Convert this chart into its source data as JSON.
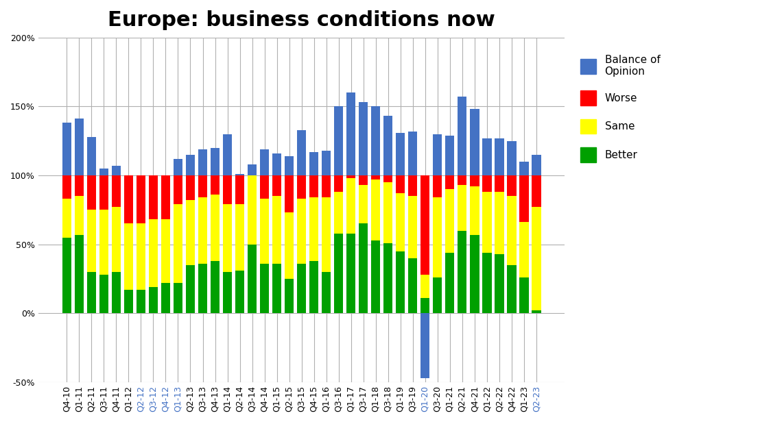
{
  "title": "Europe: business conditions now",
  "categories": [
    "Q4-10",
    "Q1-11",
    "Q2-11",
    "Q3-11",
    "Q4-11",
    "Q1-12",
    "Q2-12",
    "Q3-12",
    "Q4-12",
    "Q1-13",
    "Q2-13",
    "Q3-13",
    "Q4-13",
    "Q1-14",
    "Q2-14",
    "Q3-14",
    "Q4-14",
    "Q1-15",
    "Q2-15",
    "Q3-15",
    "Q4-15",
    "Q1-16",
    "Q3-16",
    "Q1-17",
    "Q3-17",
    "Q1-18",
    "Q3-18",
    "Q1-19",
    "Q3-19",
    "Q1-20",
    "Q3-20",
    "Q1-21",
    "Q2-21",
    "Q4-21",
    "Q1-22",
    "Q2-22",
    "Q4-22",
    "Q1-23",
    "Q2-23"
  ],
  "better": [
    55,
    57,
    30,
    28,
    30,
    17,
    17,
    19,
    22,
    22,
    35,
    36,
    38,
    30,
    31,
    50,
    36,
    36,
    25,
    36,
    38,
    30,
    58,
    58,
    65,
    53,
    51,
    45,
    40,
    11,
    26,
    44,
    60,
    57,
    44,
    43,
    35,
    26,
    2
  ],
  "same": [
    28,
    28,
    45,
    47,
    47,
    48,
    48,
    49,
    46,
    57,
    47,
    48,
    48,
    49,
    48,
    50,
    47,
    49,
    48,
    47,
    46,
    54,
    30,
    40,
    28,
    44,
    44,
    42,
    45,
    17,
    58,
    46,
    33,
    35,
    44,
    45,
    50,
    40,
    75
  ],
  "worse": [
    17,
    15,
    25,
    25,
    23,
    35,
    35,
    32,
    32,
    21,
    18,
    16,
    14,
    21,
    21,
    0,
    17,
    15,
    27,
    17,
    16,
    16,
    12,
    2,
    7,
    3,
    5,
    13,
    15,
    72,
    16,
    10,
    7,
    8,
    12,
    12,
    15,
    34,
    23
  ],
  "balance": [
    138,
    141,
    128,
    105,
    107,
    100,
    100,
    100,
    100,
    112,
    115,
    119,
    120,
    130,
    101,
    108,
    119,
    116,
    114,
    133,
    117,
    118,
    150,
    160,
    153,
    150,
    143,
    131,
    132,
    -47,
    130,
    129,
    157,
    148,
    127,
    127,
    125,
    110,
    115
  ],
  "highlight_categories": [
    "Q2-12",
    "Q3-12",
    "Q4-12",
    "Q1-13",
    "Q1-20",
    "Q2-23"
  ],
  "colors": {
    "better": "#00a000",
    "same": "#ffff00",
    "worse": "#ff0000",
    "balance": "#4472c4",
    "balance_highlight": "#4472c4"
  },
  "ylim": [
    -50,
    200
  ],
  "yticks": [
    -50,
    0,
    50,
    100,
    150,
    200
  ],
  "ytick_labels": [
    "-50%",
    "0%",
    "50%",
    "100%",
    "150%",
    "200%"
  ],
  "background_color": "#ffffff",
  "grid_color": "#b0b0b0",
  "title_fontsize": 22,
  "tick_fontsize": 9,
  "legend_fontsize": 11
}
